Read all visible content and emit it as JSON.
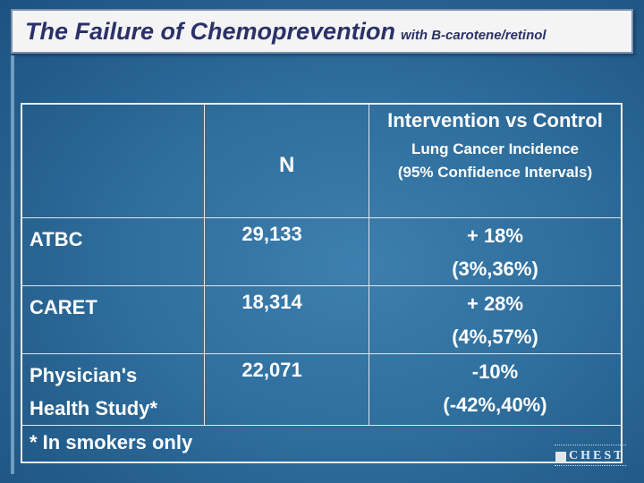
{
  "slide": {
    "title": "The Failure of Chemoprevention",
    "subtitle": "with B-carotene/retinol"
  },
  "table": {
    "header": {
      "n_label": "N",
      "intervention_title": "Intervention vs Control",
      "intervention_sub1": "Lung Cancer Incidence",
      "intervention_sub2": "(95% Confidence Intervals)"
    },
    "rows": [
      {
        "study_line1": "ATBC",
        "study_line2": "",
        "n": "29,133",
        "effect": "+ 18%",
        "ci": "(3%,36%)"
      },
      {
        "study_line1": "CARET",
        "study_line2": "",
        "n": "18,314",
        "effect": "+ 28%",
        "ci": "(4%,57%)"
      },
      {
        "study_line1": "Physician's",
        "study_line2": "Health Study*",
        "n": "22,071",
        "effect": "-10%",
        "ci": "(-42%,40%)"
      }
    ],
    "footnote": "* In smokers only"
  },
  "logo": {
    "text": "CHEST"
  }
}
